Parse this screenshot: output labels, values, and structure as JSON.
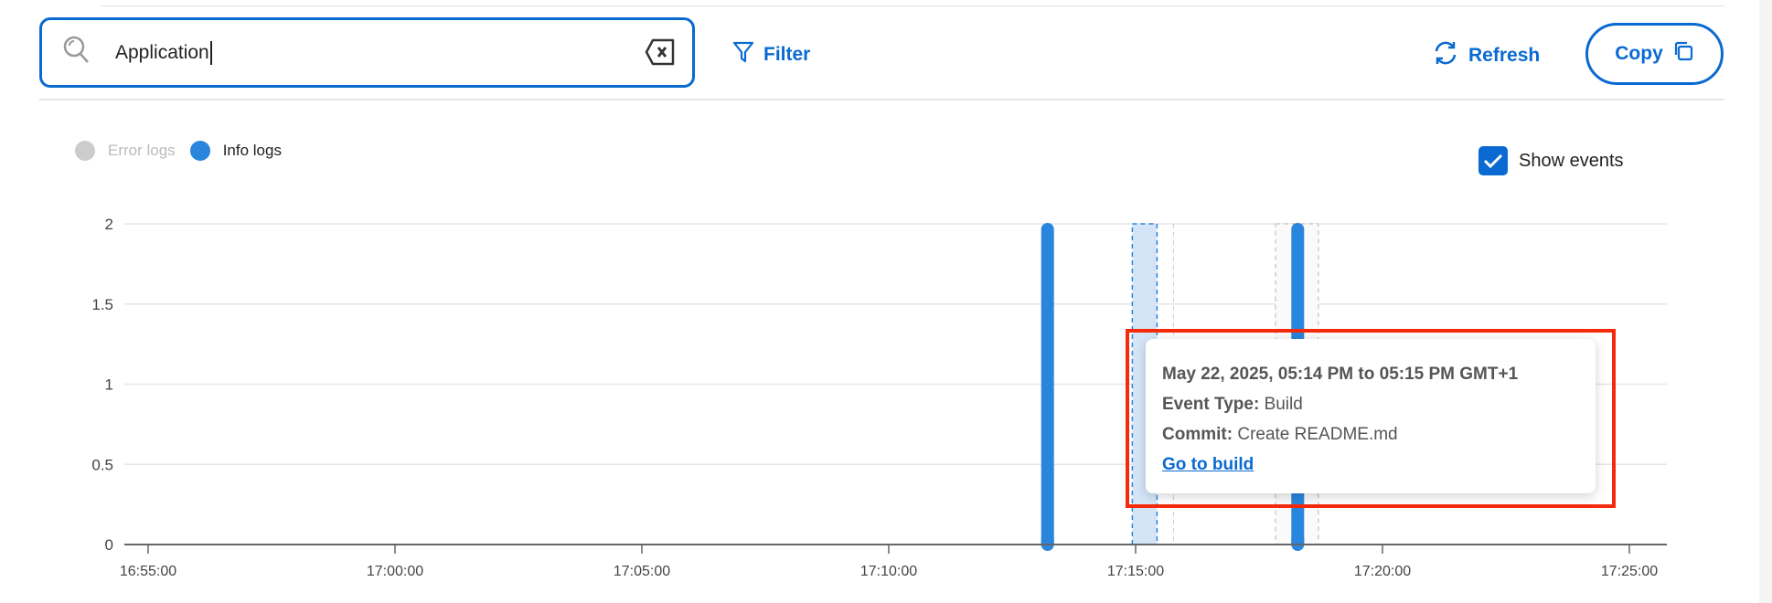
{
  "search": {
    "value": "Application",
    "icon": "search-icon",
    "clear_icon": "backspace-clear-icon"
  },
  "toolbar": {
    "filter_label": "Filter",
    "refresh_label": "Refresh",
    "copy_label": "Copy"
  },
  "legend": {
    "items": [
      {
        "label": "Error logs",
        "color": "#cccccc",
        "enabled": false
      },
      {
        "label": "Info logs",
        "color": "#2a85dc",
        "enabled": true
      }
    ]
  },
  "show_events": {
    "label": "Show events",
    "checked": true
  },
  "colors": {
    "accent": "#0a6ad1",
    "bar": "#2a85dc",
    "highlight": "#f42a0b"
  },
  "chart_data": {
    "type": "bar",
    "x_ticks": [
      "16:55:00",
      "17:00:00",
      "17:05:00",
      "17:10:00",
      "17:15:00",
      "17:20:00",
      "17:25:00"
    ],
    "y_ticks": [
      "0",
      "0.5",
      "1",
      "1.5",
      "2"
    ],
    "ylim": [
      0,
      2
    ],
    "xlim": [
      "16:54:30",
      "17:25:15"
    ],
    "grid": true,
    "series": [
      {
        "name": "Info logs",
        "points": [
          {
            "x": "17:13:13",
            "y": 2
          },
          {
            "x": "17:18:17",
            "y": 2
          }
        ]
      }
    ],
    "events": [
      {
        "start": "17:14:56",
        "end": "17:15:26",
        "active": true
      },
      {
        "start": "17:17:50",
        "end": "17:18:42",
        "active": false
      }
    ]
  },
  "tooltip": {
    "title": "May 22, 2025, 05:14 PM to 05:15 PM GMT+1",
    "event_type_label": "Event Type:",
    "event_type": "Build",
    "commit_label": "Commit:",
    "commit": "Create README.md",
    "link": "Go to build"
  }
}
